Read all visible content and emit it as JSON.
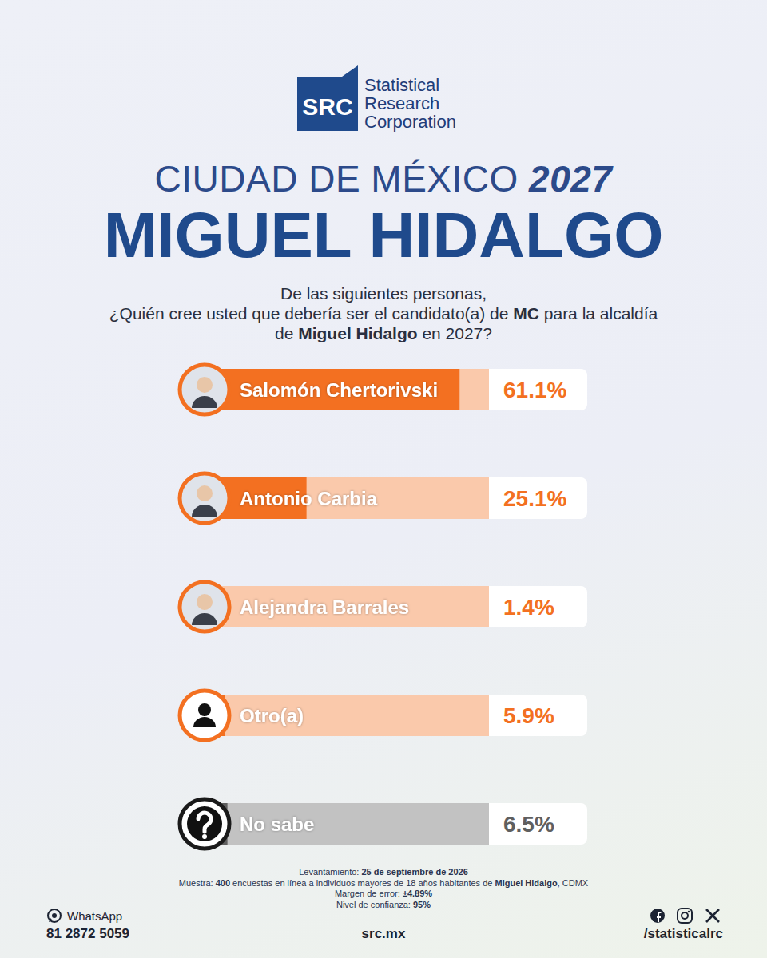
{
  "logo": {
    "mark": "SRC",
    "name_lines": [
      "Statistical",
      "Research",
      "Corporation"
    ]
  },
  "header": {
    "title": [
      {
        "text": "CIUDAD DE MÉXICO ",
        "bold": false
      },
      {
        "text": "2027",
        "bold": true
      }
    ],
    "subtitle": "MIGUEL HIDALGO"
  },
  "question": [
    [
      {
        "text": "De las siguientes personas,",
        "bold": false
      }
    ],
    [
      {
        "text": "¿Quién cree usted que debería ser el candidato(a) de ",
        "bold": false
      },
      {
        "text": "MC",
        "bold": true
      },
      {
        "text": " para la alcaldía",
        "bold": false
      }
    ],
    [
      {
        "text": "de ",
        "bold": false
      },
      {
        "text": "Miguel Hidalgo",
        "bold": true
      },
      {
        "text": " en 2027?",
        "bold": false
      }
    ]
  ],
  "chart_data": {
    "type": "bar",
    "orientation": "horizontal",
    "categories": [
      "Salomón Chertorivski",
      "Antonio Carbia",
      "Alejandra Barrales",
      "Otro(a)",
      "No sabe"
    ],
    "values": [
      61.1,
      25.1,
      1.4,
      5.9,
      6.5
    ],
    "value_labels": [
      "61.1%",
      "25.1%",
      "1.4%",
      "5.9%",
      "6.5%"
    ],
    "colors": [
      "#f37021",
      "#f37021",
      "#f37021",
      "#f37021",
      "#5f5f5f"
    ],
    "xlim": [
      0,
      68
    ],
    "xticks": [],
    "tick_labels": false,
    "grid": false,
    "data_labels": true
  },
  "footer": [
    [
      {
        "text": "Levantamiento: ",
        "bold": false
      },
      {
        "text": "25 de septiembre de 2026",
        "bold": true
      }
    ],
    [
      {
        "text": "Muestra: ",
        "bold": false
      },
      {
        "text": "400",
        "bold": true
      },
      {
        "text": " encuestas en línea a individuos mayores de 18 años habitantes de ",
        "bold": false
      },
      {
        "text": "Miguel Hidalgo",
        "bold": true
      },
      {
        "text": ", CDMX",
        "bold": false
      }
    ],
    [
      {
        "text": "Margen de error: ",
        "bold": false
      },
      {
        "text": "±4.89%",
        "bold": true
      }
    ],
    [
      {
        "text": "Nivel de confianza: ",
        "bold": false
      },
      {
        "text": "95%",
        "bold": true
      }
    ]
  ],
  "contact": {
    "whatsapp_label": "WhatsApp",
    "phone": "81 2872 5059",
    "website": "src.mx",
    "social": "/statisticalrc"
  }
}
